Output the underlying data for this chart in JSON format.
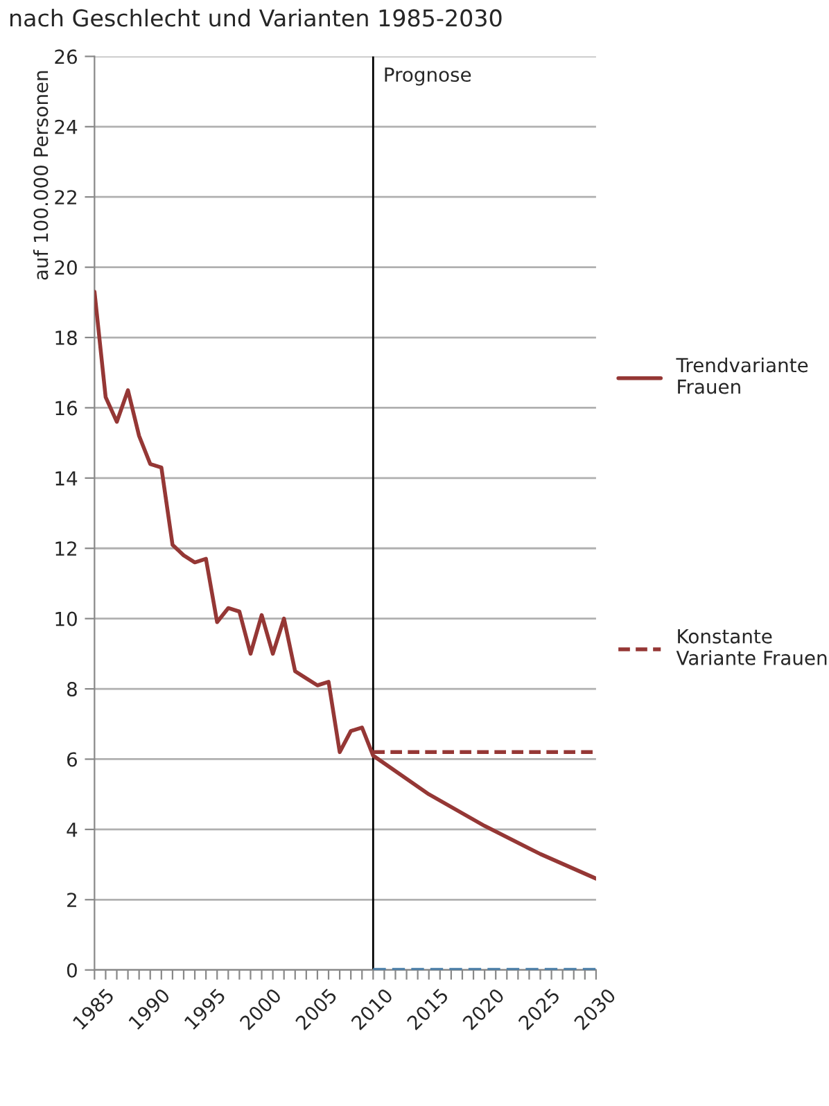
{
  "chart_data": {
    "type": "line",
    "title": "nach Geschlecht und Varianten 1985-2030",
    "ylabel": "auf 100.000 Personen",
    "series": [
      {
        "name": "Trendvariante Frauen",
        "color": "#953735",
        "line_style": "solid",
        "x": [
          1985,
          1986,
          1987,
          1988,
          1989,
          1990,
          1991,
          1992,
          1993,
          1994,
          1995,
          1996,
          1997,
          1998,
          1999,
          2000,
          2001,
          2002,
          2003,
          2004,
          2005,
          2006,
          2007,
          2008,
          2009,
          2010,
          2015,
          2020,
          2025,
          2030
        ],
        "values": [
          19.3,
          16.3,
          15.6,
          16.5,
          15.2,
          14.4,
          14.3,
          12.1,
          11.8,
          11.6,
          11.7,
          9.9,
          10.3,
          10.2,
          9.0,
          10.1,
          9.0,
          10.0,
          8.5,
          8.3,
          8.1,
          8.2,
          6.2,
          6.8,
          6.9,
          6.1,
          5.0,
          4.1,
          3.3,
          2.6
        ]
      },
      {
        "name": "Konstante Variante Frauen",
        "color": "#953735",
        "line_style": "dashed",
        "x": [
          2010,
          2030
        ],
        "values": [
          6.2,
          6.2
        ]
      },
      {
        "color": "#4a7ea8",
        "line_style": "dashed",
        "x": [
          2010,
          2030
        ],
        "values": [
          0,
          0
        ]
      }
    ],
    "ref_lines": [
      {
        "axis": "x",
        "value": 2010,
        "label": "Prognose",
        "color": "#000000"
      }
    ],
    "xlim": [
      1985,
      2030
    ],
    "xticks": [
      1985,
      {
        "value": 1986,
        "label": null
      },
      {
        "value": 1987,
        "label": null
      },
      {
        "value": 1988,
        "label": null
      },
      {
        "value": 1989,
        "label": null
      },
      1990,
      {
        "value": 1991,
        "label": null
      },
      {
        "value": 1992,
        "label": null
      },
      {
        "value": 1993,
        "label": null
      },
      {
        "value": 1994,
        "label": null
      },
      1995,
      {
        "value": 1996,
        "label": null
      },
      {
        "value": 1997,
        "label": null
      },
      {
        "value": 1998,
        "label": null
      },
      {
        "value": 1999,
        "label": null
      },
      2000,
      {
        "value": 2001,
        "label": null
      },
      {
        "value": 2002,
        "label": null
      },
      {
        "value": 2003,
        "label": null
      },
      {
        "value": 2004,
        "label": null
      },
      2005,
      {
        "value": 2006,
        "label": null
      },
      {
        "value": 2007,
        "label": null
      },
      {
        "value": 2008,
        "label": null
      },
      {
        "value": 2009,
        "label": null
      },
      2010,
      {
        "value": 2011,
        "label": null
      },
      {
        "value": 2012,
        "label": null
      },
      {
        "value": 2013,
        "label": null
      },
      {
        "value": 2014,
        "label": null
      },
      2015,
      {
        "value": 2016,
        "label": null
      },
      {
        "value": 2017,
        "label": null
      },
      {
        "value": 2018,
        "label": null
      },
      {
        "value": 2019,
        "label": null
      },
      2020,
      {
        "value": 2021,
        "label": null
      },
      {
        "value": 2022,
        "label": null
      },
      {
        "value": 2023,
        "label": null
      },
      {
        "value": 2024,
        "label": null
      },
      2025,
      {
        "value": 2026,
        "label": null
      },
      {
        "value": 2027,
        "label": null
      },
      {
        "value": 2028,
        "label": null
      },
      {
        "value": 2029,
        "label": null
      },
      2030
    ],
    "ylim": [
      0,
      26
    ],
    "yticks": [
      0,
      2,
      4,
      6,
      8,
      10,
      12,
      14,
      16,
      18,
      20,
      22,
      24,
      26
    ],
    "grid": "y",
    "legend": "right",
    "marker": "none"
  }
}
